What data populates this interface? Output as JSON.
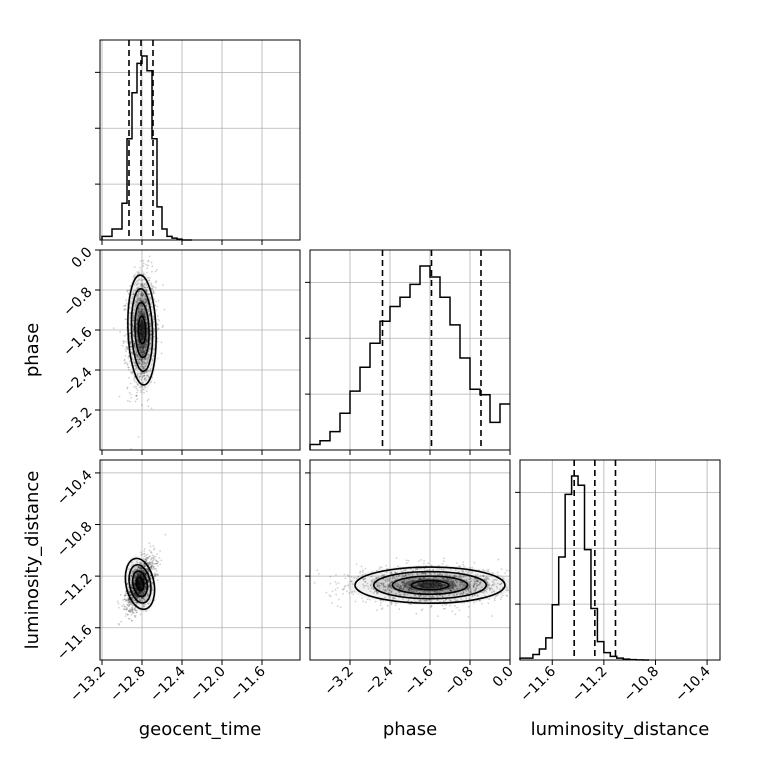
{
  "chart_data": {
    "type": "corner",
    "parameters": [
      "geocent_time",
      "phase",
      "luminosity_distance"
    ],
    "axes": {
      "geocent_time": {
        "label": "geocent_time",
        "range": [
          -13.22,
          -11.22
        ],
        "ticks": [
          -13.2,
          -12.8,
          -12.4,
          -12.0,
          -11.6
        ],
        "tick_labels": [
          "−13.2",
          "−12.8",
          "−12.4",
          "−12.0",
          "−11.6"
        ]
      },
      "phase": {
        "label": "phase",
        "range": [
          -4.0,
          0.0
        ],
        "ticks": [
          -3.2,
          -2.4,
          -1.6,
          -0.8,
          0.0
        ],
        "tick_labels": [
          "−3.2",
          "−2.4",
          "−1.6",
          "−0.8",
          "0.0"
        ]
      },
      "luminosity_distance": {
        "label": "luminosity_distance",
        "range": [
          -11.85,
          -10.3
        ],
        "ticks": [
          -11.6,
          -11.2,
          -10.8,
          -10.4
        ],
        "tick_labels": [
          "−11.6",
          "−11.2",
          "−10.8",
          "−10.4"
        ]
      }
    },
    "histograms": {
      "geocent_time": {
        "bin_edges": [
          -13.2,
          -13.1,
          -13.0,
          -12.95,
          -12.9,
          -12.85,
          -12.8,
          -12.75,
          -12.7,
          -12.65,
          -12.6,
          -12.55,
          -12.5,
          -12.45,
          -12.4,
          -12.3
        ],
        "counts": [
          0.02,
          0.06,
          0.2,
          0.55,
          0.8,
          0.96,
          1.0,
          0.92,
          0.55,
          0.18,
          0.06,
          0.02,
          0.01,
          0.005,
          0.0
        ],
        "quantiles": [
          -12.93,
          -12.81,
          -12.69
        ]
      },
      "phase": {
        "bin_edges": [
          -4.0,
          -3.8,
          -3.6,
          -3.4,
          -3.2,
          -3.0,
          -2.8,
          -2.6,
          -2.4,
          -2.2,
          -2.0,
          -1.8,
          -1.6,
          -1.4,
          -1.2,
          -1.0,
          -0.8,
          -0.6,
          -0.4,
          -0.2,
          0.0
        ],
        "counts": [
          0.03,
          0.05,
          0.1,
          0.2,
          0.32,
          0.45,
          0.58,
          0.7,
          0.78,
          0.83,
          0.9,
          1.0,
          0.94,
          0.83,
          0.68,
          0.5,
          0.33,
          0.3,
          0.15,
          0.25
        ],
        "quantiles": [
          -2.55,
          -1.57,
          -0.58
        ]
      },
      "luminosity_distance": {
        "bin_edges": [
          -11.85,
          -11.75,
          -11.7,
          -11.65,
          -11.6,
          -11.55,
          -11.5,
          -11.45,
          -11.4,
          -11.35,
          -11.3,
          -11.25,
          -11.2,
          -11.15,
          -11.1,
          -11.05,
          -11.0,
          -10.95,
          -10.9,
          -10.85
        ],
        "counts": [
          0.01,
          0.03,
          0.06,
          0.12,
          0.3,
          0.56,
          0.9,
          1.0,
          0.95,
          0.6,
          0.28,
          0.1,
          0.04,
          0.02,
          0.01,
          0.005,
          0.002,
          0.001,
          0.0
        ],
        "quantiles": [
          -11.43,
          -11.27,
          -11.11
        ]
      }
    },
    "posterior_2d": {
      "phase_vs_geocent_time": {
        "x": "geocent_time",
        "y": "phase",
        "mean": [
          -12.8,
          -1.6
        ],
        "std": [
          0.07,
          0.55
        ],
        "correlation": 0.1
      },
      "luminosity_distance_vs_geocent_time": {
        "x": "geocent_time",
        "y": "luminosity_distance",
        "mean": [
          -12.82,
          -11.26
        ],
        "std": [
          0.07,
          0.1
        ],
        "correlation": 0.55
      },
      "luminosity_distance_vs_phase": {
        "x": "phase",
        "y": "luminosity_distance",
        "mean": [
          -1.6,
          -11.27
        ],
        "std": [
          0.75,
          0.07
        ],
        "correlation": 0.0
      }
    },
    "contour_levels_sigma": [
      0.5,
      1.0,
      1.5,
      2.0
    ],
    "grid": true
  }
}
